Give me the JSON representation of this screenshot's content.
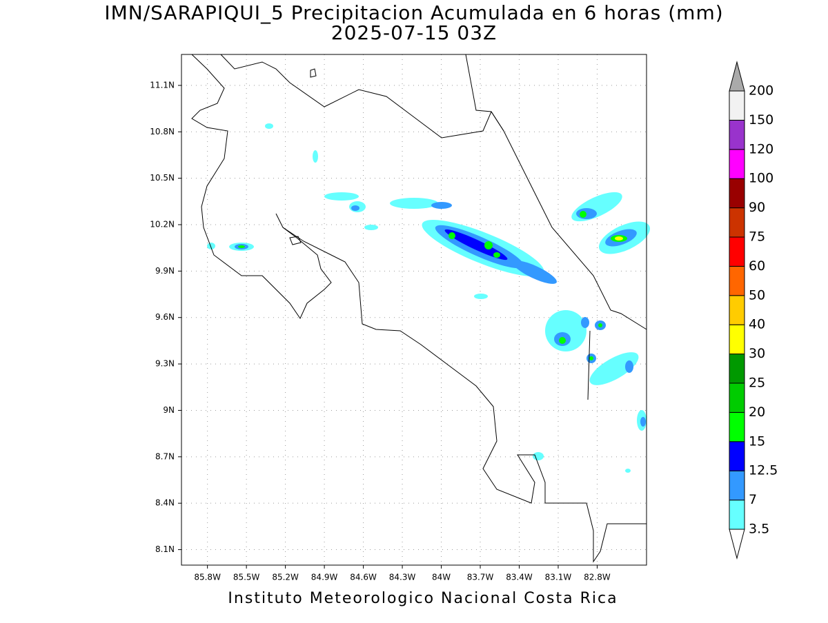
{
  "title": "IMN/SARAPIQUI_5 Precipitacion Acumulada en 6 horas (mm)",
  "subtitle": "2025-07-15 03Z",
  "map": {
    "xlim": [
      -86.0,
      -82.42
    ],
    "ylim": [
      8.0,
      11.3
    ],
    "grid": true,
    "xticks": [
      {
        "value": -85.8,
        "label": "85.8W"
      },
      {
        "value": -85.5,
        "label": "85.5W"
      },
      {
        "value": -85.2,
        "label": "85.2W"
      },
      {
        "value": -84.9,
        "label": "84.9W"
      },
      {
        "value": -84.6,
        "label": "84.6W"
      },
      {
        "value": -84.3,
        "label": "84.3W"
      },
      {
        "value": -84.0,
        "label": "84W"
      },
      {
        "value": -83.7,
        "label": "83.7W"
      },
      {
        "value": -83.4,
        "label": "83.4W"
      },
      {
        "value": -83.1,
        "label": "83.1W"
      },
      {
        "value": -82.8,
        "label": "82.8W"
      }
    ],
    "yticks": [
      {
        "value": 8.1,
        "label": "8.1N"
      },
      {
        "value": 8.4,
        "label": "8.4N"
      },
      {
        "value": 8.7,
        "label": "8.7N"
      },
      {
        "value": 9.0,
        "label": "9N"
      },
      {
        "value": 9.3,
        "label": "9.3N"
      },
      {
        "value": 9.6,
        "label": "9.6N"
      },
      {
        "value": 9.9,
        "label": "9.9N"
      },
      {
        "value": 10.2,
        "label": "10.2N"
      },
      {
        "value": 10.5,
        "label": "10.5N"
      },
      {
        "value": 10.8,
        "label": "10.8N"
      },
      {
        "value": 11.1,
        "label": "11.1N"
      }
    ]
  },
  "colorbar": {
    "levels": [
      3.5,
      7,
      12.5,
      15,
      20,
      25,
      30,
      40,
      50,
      60,
      75,
      90,
      100,
      120,
      150,
      200
    ],
    "colors": [
      "#ffffff",
      "#66ffff",
      "#3399ff",
      "#0000ff",
      "#00ff00",
      "#00cc00",
      "#009900",
      "#ffff00",
      "#ffcc00",
      "#ff6600",
      "#ff0000",
      "#cc3300",
      "#990000",
      "#ff00ff",
      "#9933cc",
      "#f2f2f2",
      "#aaaaaa"
    ]
  },
  "footer": "Instituto Meteorologico Nacional Costa Rica"
}
